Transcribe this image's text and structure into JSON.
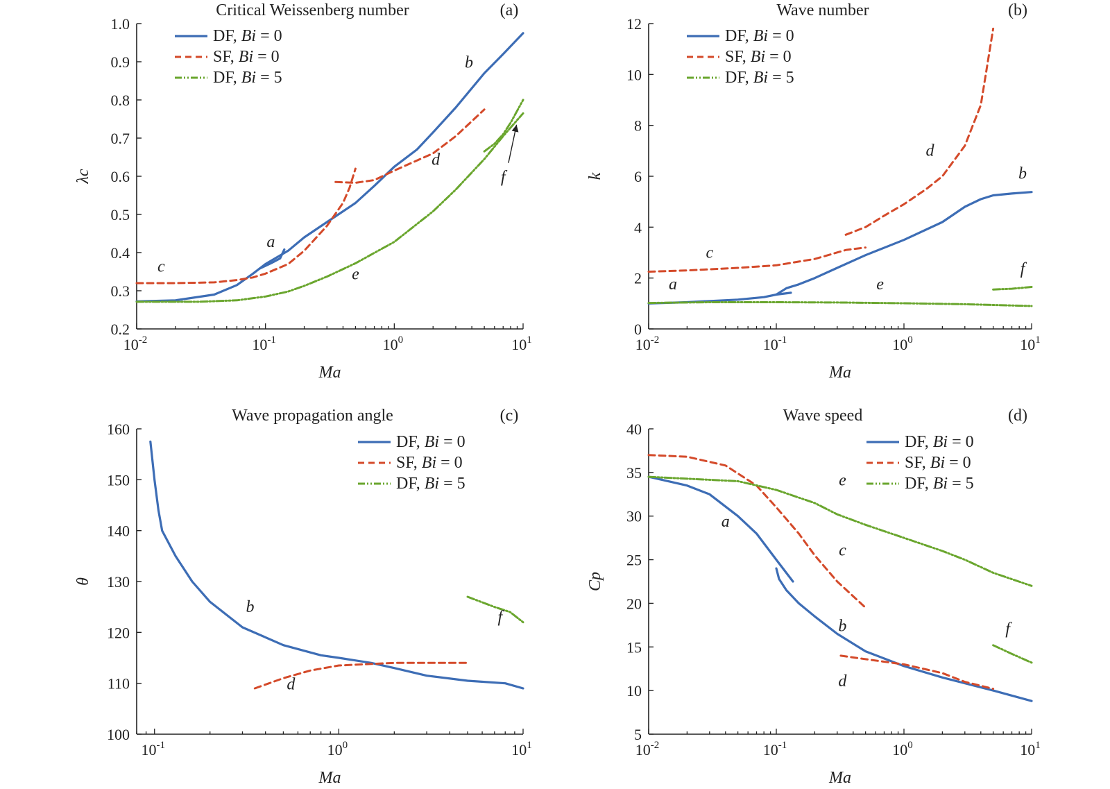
{
  "colors": {
    "df_bi0": "#3d6db5",
    "sf_bi0": "#d44a2a",
    "df_bi5": "#6aa62e",
    "axis": "#222222"
  },
  "legend_entries": [
    {
      "main": "DF, ",
      "ital": "Bi",
      "rest": " = 0"
    },
    {
      "main": "SF, ",
      "ital": "Bi",
      "rest": " = 0"
    },
    {
      "main": "DF, ",
      "ital": "Bi",
      "rest": " = 5"
    }
  ],
  "chart_data": [
    {
      "panel": "(a)",
      "type": "line",
      "title": "Critical Weissenberg number",
      "xlabel": "Ma",
      "ylabel": "λc",
      "xscale": "log",
      "xlim": [
        0.01,
        10
      ],
      "ylim": [
        0.2,
        1.0
      ],
      "yticks": [
        "0.2",
        "0.3",
        "0.4",
        "0.5",
        "0.6",
        "0.7",
        "0.8",
        "0.9",
        "1.0"
      ],
      "xticks": [
        {
          "b": "10",
          "e": "-2"
        },
        {
          "b": "10",
          "e": "-1"
        },
        {
          "b": "10",
          "e": "0"
        },
        {
          "b": "10",
          "e": "1"
        }
      ],
      "legend_position": "top-left",
      "series": [
        {
          "style": "df_bi0",
          "points": [
            [
              0.01,
              0.272
            ],
            [
              0.02,
              0.275
            ],
            [
              0.04,
              0.29
            ],
            [
              0.06,
              0.315
            ],
            [
              0.08,
              0.345
            ],
            [
              0.1,
              0.37
            ],
            [
              0.15,
              0.405
            ],
            [
              0.2,
              0.44
            ],
            [
              0.3,
              0.48
            ],
            [
              0.5,
              0.53
            ],
            [
              0.7,
              0.575
            ],
            [
              1.0,
              0.625
            ],
            [
              1.5,
              0.67
            ],
            [
              2.0,
              0.715
            ],
            [
              3.0,
              0.78
            ],
            [
              5.0,
              0.87
            ],
            [
              7.0,
              0.92
            ],
            [
              10.0,
              0.975
            ]
          ]
        },
        {
          "style": "df_bi0",
          "points": [
            [
              0.09,
              0.358
            ],
            [
              0.11,
              0.372
            ],
            [
              0.13,
              0.385
            ],
            [
              0.14,
              0.408
            ]
          ]
        },
        {
          "style": "sf_bi0",
          "points": [
            [
              0.01,
              0.32
            ],
            [
              0.02,
              0.32
            ],
            [
              0.04,
              0.322
            ],
            [
              0.06,
              0.328
            ],
            [
              0.08,
              0.335
            ],
            [
              0.1,
              0.345
            ],
            [
              0.15,
              0.37
            ],
            [
              0.2,
              0.405
            ],
            [
              0.3,
              0.47
            ],
            [
              0.4,
              0.53
            ],
            [
              0.45,
              0.57
            ],
            [
              0.5,
              0.62
            ]
          ]
        },
        {
          "style": "sf_bi0",
          "points": [
            [
              0.35,
              0.585
            ],
            [
              0.5,
              0.583
            ],
            [
              0.7,
              0.59
            ],
            [
              1.0,
              0.615
            ],
            [
              2.0,
              0.66
            ],
            [
              3.0,
              0.705
            ],
            [
              5.0,
              0.775
            ]
          ]
        },
        {
          "style": "df_bi5",
          "points": [
            [
              0.01,
              0.271
            ],
            [
              0.03,
              0.271
            ],
            [
              0.06,
              0.275
            ],
            [
              0.1,
              0.285
            ],
            [
              0.15,
              0.298
            ],
            [
              0.2,
              0.313
            ],
            [
              0.3,
              0.337
            ],
            [
              0.5,
              0.372
            ],
            [
              1.0,
              0.428
            ],
            [
              2.0,
              0.508
            ],
            [
              3.0,
              0.565
            ],
            [
              5.0,
              0.645
            ],
            [
              7.0,
              0.705
            ],
            [
              10.0,
              0.765
            ]
          ]
        },
        {
          "style": "df_bi5",
          "points": [
            [
              5.0,
              0.665
            ],
            [
              6.0,
              0.685
            ],
            [
              7.0,
              0.71
            ],
            [
              8.0,
              0.74
            ],
            [
              10.0,
              0.8
            ]
          ]
        }
      ],
      "annotations": [
        {
          "text": "a",
          "x": 0.11,
          "y": 0.415
        },
        {
          "text": "b",
          "x": 3.8,
          "y": 0.885
        },
        {
          "text": "c",
          "x": 0.0155,
          "y": 0.35
        },
        {
          "text": "d",
          "x": 2.1,
          "y": 0.63
        },
        {
          "text": "e",
          "x": 0.5,
          "y": 0.33
        },
        {
          "text": "f",
          "x": 7.0,
          "y": 0.585
        }
      ]
    },
    {
      "panel": "(b)",
      "type": "line",
      "title": "Wave number",
      "xlabel": "Ma",
      "ylabel": "k",
      "xscale": "log",
      "xlim": [
        0.01,
        10
      ],
      "ylim": [
        0,
        12
      ],
      "yticks": [
        "0",
        "2",
        "4",
        "6",
        "8",
        "10",
        "12"
      ],
      "xticks": [
        {
          "b": "10",
          "e": "-2"
        },
        {
          "b": "10",
          "e": "-1"
        },
        {
          "b": "10",
          "e": "0"
        },
        {
          "b": "10",
          "e": "1"
        }
      ],
      "legend_position": "top-left",
      "series": [
        {
          "style": "df_bi0",
          "points": [
            [
              0.01,
              1.0
            ],
            [
              0.02,
              1.05
            ],
            [
              0.05,
              1.15
            ],
            [
              0.08,
              1.25
            ],
            [
              0.1,
              1.35
            ],
            [
              0.13,
              1.42
            ]
          ]
        },
        {
          "style": "df_bi0",
          "points": [
            [
              0.1,
              1.35
            ],
            [
              0.12,
              1.6
            ],
            [
              0.15,
              1.75
            ],
            [
              0.2,
              2.0
            ],
            [
              0.3,
              2.4
            ],
            [
              0.5,
              2.9
            ],
            [
              1.0,
              3.5
            ],
            [
              2.0,
              4.2
            ],
            [
              3.0,
              4.8
            ],
            [
              4.0,
              5.1
            ],
            [
              5.0,
              5.25
            ],
            [
              7.0,
              5.32
            ],
            [
              10.0,
              5.38
            ]
          ]
        },
        {
          "style": "sf_bi0",
          "points": [
            [
              0.01,
              2.25
            ],
            [
              0.02,
              2.3
            ],
            [
              0.05,
              2.4
            ],
            [
              0.1,
              2.5
            ],
            [
              0.2,
              2.75
            ],
            [
              0.35,
              3.1
            ],
            [
              0.5,
              3.2
            ]
          ]
        },
        {
          "style": "sf_bi0",
          "points": [
            [
              0.35,
              3.7
            ],
            [
              0.5,
              4.0
            ],
            [
              0.7,
              4.45
            ],
            [
              1.0,
              4.9
            ],
            [
              1.5,
              5.5
            ],
            [
              2.0,
              6.0
            ],
            [
              3.0,
              7.2
            ],
            [
              4.0,
              8.8
            ],
            [
              5.0,
              11.8
            ]
          ]
        },
        {
          "style": "df_bi5",
          "points": [
            [
              0.01,
              1.02
            ],
            [
              0.03,
              1.05
            ],
            [
              0.1,
              1.05
            ],
            [
              0.3,
              1.04
            ],
            [
              1.0,
              1.01
            ],
            [
              3.0,
              0.97
            ],
            [
              10.0,
              0.9
            ]
          ]
        },
        {
          "style": "df_bi5",
          "points": [
            [
              5.0,
              1.55
            ],
            [
              7.0,
              1.58
            ],
            [
              10.0,
              1.65
            ]
          ]
        }
      ],
      "annotations": [
        {
          "text": "a",
          "x": 0.0155,
          "y": 1.55
        },
        {
          "text": "b",
          "x": 8.5,
          "y": 5.9
        },
        {
          "text": "c",
          "x": 0.03,
          "y": 2.8
        },
        {
          "text": "d",
          "x": 1.6,
          "y": 6.8
        },
        {
          "text": "e",
          "x": 0.65,
          "y": 1.55
        },
        {
          "text": "f",
          "x": 8.5,
          "y": 2.15
        }
      ]
    },
    {
      "panel": "(c)",
      "type": "line",
      "title": "Wave propagation angle",
      "xlabel": "Ma",
      "ylabel": "θ",
      "xscale": "log",
      "xlim": [
        0.08,
        10
      ],
      "ylim": [
        100,
        160
      ],
      "yticks": [
        "100",
        "110",
        "120",
        "130",
        "140",
        "150",
        "160"
      ],
      "xticks": [
        {
          "b": "10",
          "e": "-1",
          "v": 0.1
        },
        {
          "b": "10",
          "e": "0",
          "v": 1
        },
        {
          "b": "10",
          "e": "1",
          "v": 10
        }
      ],
      "legend_position": "top-right",
      "series": [
        {
          "style": "df_bi0",
          "points": [
            [
              0.095,
              157.5
            ],
            [
              0.1,
              150
            ],
            [
              0.105,
              144
            ],
            [
              0.11,
              140
            ],
            [
              0.13,
              135
            ],
            [
              0.16,
              130
            ],
            [
              0.2,
              126
            ],
            [
              0.3,
              121
            ],
            [
              0.5,
              117.5
            ],
            [
              0.8,
              115.5
            ],
            [
              1.0,
              115
            ],
            [
              1.5,
              114
            ],
            [
              2.0,
              113
            ],
            [
              3.0,
              111.5
            ],
            [
              5.0,
              110.5
            ],
            [
              8.0,
              110
            ],
            [
              10.0,
              109
            ]
          ]
        },
        {
          "style": "sf_bi0",
          "points": [
            [
              0.35,
              109
            ],
            [
              0.5,
              111
            ],
            [
              0.7,
              112.5
            ],
            [
              1.0,
              113.5
            ],
            [
              1.5,
              113.8
            ],
            [
              2.0,
              114
            ],
            [
              3.0,
              114
            ],
            [
              5.0,
              114
            ]
          ]
        },
        {
          "style": "df_bi5",
          "points": [
            [
              5.0,
              127
            ],
            [
              7.0,
              125
            ],
            [
              8.5,
              124
            ],
            [
              10.0,
              122
            ]
          ]
        }
      ],
      "annotations": [
        {
          "text": "b",
          "x": 0.33,
          "y": 124
        },
        {
          "text": "d",
          "x": 0.55,
          "y": 108.8
        },
        {
          "text": "f",
          "x": 7.5,
          "y": 122
        }
      ]
    },
    {
      "panel": "(d)",
      "type": "line",
      "title": "Wave speed",
      "xlabel": "Ma",
      "ylabel": "Cp",
      "xscale": "log",
      "xlim": [
        0.01,
        10
      ],
      "ylim": [
        5,
        40
      ],
      "yticks": [
        "5",
        "10",
        "15",
        "20",
        "25",
        "30",
        "35",
        "40"
      ],
      "xticks": [
        {
          "b": "10",
          "e": "-2"
        },
        {
          "b": "10",
          "e": "-1"
        },
        {
          "b": "10",
          "e": "0"
        },
        {
          "b": "10",
          "e": "1"
        }
      ],
      "legend_position": "top-right",
      "series": [
        {
          "style": "df_bi0",
          "points": [
            [
              0.01,
              34.5
            ],
            [
              0.02,
              33.5
            ],
            [
              0.03,
              32.5
            ],
            [
              0.05,
              30
            ],
            [
              0.07,
              28
            ],
            [
              0.1,
              25
            ],
            [
              0.135,
              22.5
            ]
          ]
        },
        {
          "style": "df_bi0",
          "points": [
            [
              0.1,
              24
            ],
            [
              0.105,
              22.8
            ],
            [
              0.12,
              21.5
            ],
            [
              0.15,
              20
            ],
            [
              0.2,
              18.5
            ],
            [
              0.3,
              16.5
            ],
            [
              0.5,
              14.5
            ],
            [
              1.0,
              12.8
            ],
            [
              2.0,
              11.5
            ],
            [
              5.0,
              10
            ],
            [
              10.0,
              8.8
            ]
          ]
        },
        {
          "style": "sf_bi0",
          "points": [
            [
              0.01,
              37
            ],
            [
              0.02,
              36.8
            ],
            [
              0.04,
              35.8
            ],
            [
              0.07,
              33.5
            ],
            [
              0.1,
              31
            ],
            [
              0.15,
              28
            ],
            [
              0.2,
              25.5
            ],
            [
              0.3,
              22.5
            ],
            [
              0.5,
              19.5
            ]
          ]
        },
        {
          "style": "sf_bi0",
          "points": [
            [
              0.32,
              14
            ],
            [
              0.5,
              13.6
            ],
            [
              1.0,
              13
            ],
            [
              2.0,
              12
            ],
            [
              3.0,
              11
            ],
            [
              5.0,
              10.2
            ]
          ]
        },
        {
          "style": "df_bi5",
          "points": [
            [
              0.01,
              34.5
            ],
            [
              0.05,
              34
            ],
            [
              0.1,
              33
            ],
            [
              0.2,
              31.5
            ],
            [
              0.3,
              30.2
            ],
            [
              0.5,
              29
            ],
            [
              1.0,
              27.5
            ],
            [
              2.0,
              26
            ],
            [
              3.0,
              25
            ],
            [
              5.0,
              23.5
            ],
            [
              10.0,
              22
            ]
          ]
        },
        {
          "style": "df_bi5",
          "points": [
            [
              5.0,
              15.2
            ],
            [
              7.0,
              14.2
            ],
            [
              10.0,
              13.2
            ]
          ]
        }
      ],
      "annotations": [
        {
          "text": "a",
          "x": 0.04,
          "y": 28.8
        },
        {
          "text": "b",
          "x": 0.33,
          "y": 16.8
        },
        {
          "text": "c",
          "x": 0.33,
          "y": 25.5
        },
        {
          "text": "d",
          "x": 0.33,
          "y": 10.5
        },
        {
          "text": "e",
          "x": 0.33,
          "y": 33.5
        },
        {
          "text": "f",
          "x": 6.5,
          "y": 16.5
        }
      ]
    }
  ]
}
